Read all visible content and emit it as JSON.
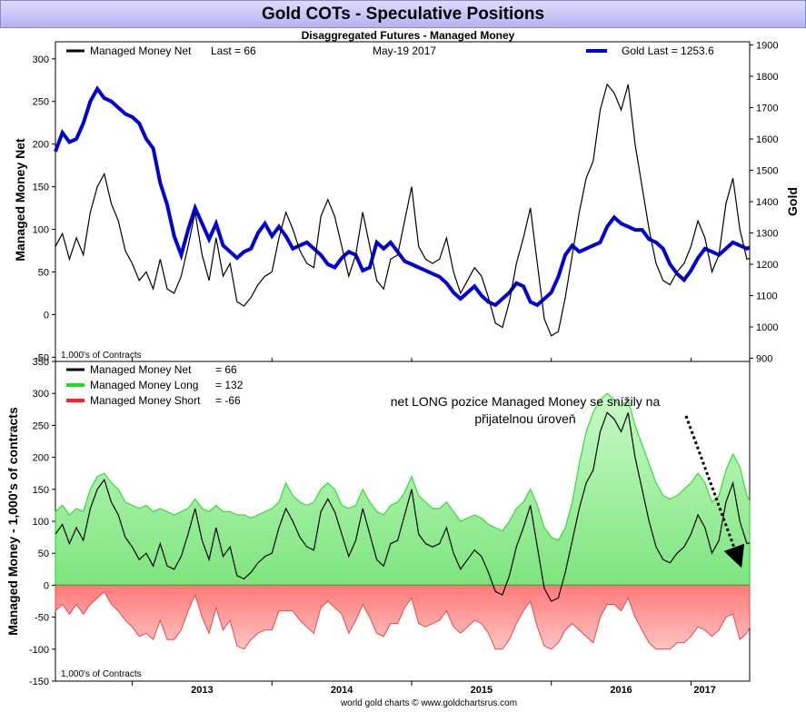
{
  "title": "Gold COTs - Speculative Positions",
  "subtitle": "Disaggregated Futures - Managed Money",
  "footer": "world gold charts © www.goldchartsrus.com",
  "chart_data": [
    {
      "type": "line",
      "legend": {
        "net": "Managed Money Net",
        "net_last": "Last = 66",
        "date": "May-19  2017",
        "gold": "Gold Last = 1253.6"
      },
      "ylabel_left": "Managed Money Net",
      "ylabel_right": "Gold",
      "units": "1,000's of Contracts",
      "ylim_left": [
        -55,
        320
      ],
      "ylim_right": [
        890,
        1910
      ],
      "yticks_left": [
        -50,
        0,
        50,
        100,
        150,
        200,
        250,
        300
      ],
      "yticks_right": [
        900,
        1000,
        1100,
        1200,
        1300,
        1400,
        1500,
        1600,
        1700,
        1800,
        1900
      ],
      "x_domain": [
        2012.45,
        2017.42
      ],
      "series": [
        {
          "name": "Managed Money Net",
          "color": "#000000",
          "x": [
            2012.45,
            2012.5,
            2012.55,
            2012.6,
            2012.65,
            2012.7,
            2012.75,
            2012.8,
            2012.85,
            2012.9,
            2012.95,
            2013.0,
            2013.05,
            2013.1,
            2013.15,
            2013.2,
            2013.25,
            2013.3,
            2013.35,
            2013.4,
            2013.45,
            2013.5,
            2013.55,
            2013.6,
            2013.65,
            2013.7,
            2013.75,
            2013.8,
            2013.85,
            2013.9,
            2013.95,
            2014.0,
            2014.05,
            2014.1,
            2014.15,
            2014.2,
            2014.25,
            2014.3,
            2014.35,
            2014.4,
            2014.45,
            2014.5,
            2014.55,
            2014.6,
            2014.65,
            2014.7,
            2014.75,
            2014.8,
            2014.85,
            2014.9,
            2014.95,
            2015.0,
            2015.05,
            2015.1,
            2015.15,
            2015.2,
            2015.25,
            2015.3,
            2015.35,
            2015.4,
            2015.45,
            2015.5,
            2015.55,
            2015.6,
            2015.65,
            2015.7,
            2015.75,
            2015.8,
            2015.85,
            2015.9,
            2015.95,
            2016.0,
            2016.05,
            2016.1,
            2016.15,
            2016.2,
            2016.25,
            2016.3,
            2016.35,
            2016.4,
            2016.45,
            2016.5,
            2016.55,
            2016.6,
            2016.65,
            2016.7,
            2016.75,
            2016.8,
            2016.85,
            2016.9,
            2016.95,
            2017.0,
            2017.05,
            2017.1,
            2017.15,
            2017.2,
            2017.25,
            2017.3,
            2017.35,
            2017.4,
            2017.42
          ],
          "y": [
            80,
            95,
            65,
            90,
            70,
            120,
            150,
            165,
            130,
            110,
            75,
            60,
            40,
            50,
            30,
            65,
            30,
            25,
            45,
            80,
            120,
            70,
            40,
            90,
            45,
            60,
            15,
            10,
            20,
            35,
            45,
            50,
            90,
            120,
            100,
            75,
            60,
            55,
            115,
            135,
            115,
            80,
            45,
            70,
            120,
            80,
            40,
            30,
            65,
            70,
            110,
            150,
            80,
            65,
            60,
            65,
            90,
            50,
            25,
            40,
            55,
            45,
            20,
            -10,
            -15,
            15,
            60,
            90,
            125,
            60,
            -5,
            -25,
            -20,
            20,
            70,
            120,
            160,
            180,
            240,
            270,
            260,
            240,
            270,
            200,
            150,
            100,
            60,
            40,
            35,
            50,
            60,
            80,
            110,
            90,
            50,
            70,
            130,
            160,
            100,
            65,
            66
          ]
        },
        {
          "name": "Gold",
          "color": "#0000dd",
          "x": [
            2012.45,
            2012.5,
            2012.55,
            2012.6,
            2012.65,
            2012.7,
            2012.75,
            2012.8,
            2012.85,
            2012.9,
            2012.95,
            2013.0,
            2013.05,
            2013.1,
            2013.15,
            2013.2,
            2013.25,
            2013.3,
            2013.35,
            2013.4,
            2013.45,
            2013.5,
            2013.55,
            2013.6,
            2013.65,
            2013.7,
            2013.75,
            2013.8,
            2013.85,
            2013.9,
            2013.95,
            2014.0,
            2014.05,
            2014.1,
            2014.15,
            2014.2,
            2014.25,
            2014.3,
            2014.35,
            2014.4,
            2014.45,
            2014.5,
            2014.55,
            2014.6,
            2014.65,
            2014.7,
            2014.75,
            2014.8,
            2014.85,
            2014.9,
            2014.95,
            2015.0,
            2015.05,
            2015.1,
            2015.15,
            2015.2,
            2015.25,
            2015.3,
            2015.35,
            2015.4,
            2015.45,
            2015.5,
            2015.55,
            2015.6,
            2015.65,
            2015.7,
            2015.75,
            2015.8,
            2015.85,
            2015.9,
            2015.95,
            2016.0,
            2016.05,
            2016.1,
            2016.15,
            2016.2,
            2016.25,
            2016.3,
            2016.35,
            2016.4,
            2016.45,
            2016.5,
            2016.55,
            2016.6,
            2016.65,
            2016.7,
            2016.75,
            2016.8,
            2016.85,
            2016.9,
            2016.95,
            2017.0,
            2017.05,
            2017.1,
            2017.15,
            2017.2,
            2017.25,
            2017.3,
            2017.35,
            2017.4,
            2017.42
          ],
          "y": [
            1560,
            1620,
            1590,
            1600,
            1650,
            1720,
            1760,
            1730,
            1720,
            1700,
            1680,
            1670,
            1650,
            1600,
            1570,
            1460,
            1390,
            1290,
            1230,
            1310,
            1380,
            1330,
            1280,
            1330,
            1260,
            1240,
            1220,
            1240,
            1250,
            1300,
            1330,
            1290,
            1320,
            1290,
            1250,
            1260,
            1270,
            1250,
            1230,
            1200,
            1190,
            1220,
            1240,
            1230,
            1180,
            1190,
            1270,
            1250,
            1270,
            1240,
            1210,
            1200,
            1190,
            1180,
            1170,
            1160,
            1140,
            1110,
            1090,
            1110,
            1130,
            1100,
            1080,
            1070,
            1090,
            1110,
            1140,
            1130,
            1080,
            1070,
            1090,
            1110,
            1160,
            1230,
            1260,
            1240,
            1250,
            1260,
            1270,
            1320,
            1350,
            1330,
            1320,
            1310,
            1310,
            1280,
            1270,
            1250,
            1200,
            1170,
            1150,
            1180,
            1220,
            1250,
            1240,
            1230,
            1250,
            1270,
            1260,
            1250,
            1253.6
          ]
        }
      ]
    },
    {
      "type": "area",
      "legend": {
        "net": "Managed Money Net",
        "net_value": "= 66",
        "long": "Managed Money Long",
        "long_value": "= 132",
        "short": "Managed Money Short",
        "short_value": "= -66"
      },
      "ylabel": "Managed Money - 1,000's of contracts",
      "units": "1,000's of Contracts",
      "annotation": [
        "net LONG pozice Managed Money se snížily na",
        "přijatelnou úroveň"
      ],
      "ylim": [
        -150,
        350
      ],
      "yticks": [
        -150,
        -100,
        -50,
        0,
        50,
        100,
        150,
        200,
        250,
        300,
        350
      ],
      "x_domain": [
        2012.45,
        2017.42
      ],
      "xticks": [
        {
          "x": 2013.0,
          "label": "2013"
        },
        {
          "x": 2014.0,
          "label": "2014"
        },
        {
          "x": 2015.0,
          "label": "2015"
        },
        {
          "x": 2016.0,
          "label": "2016"
        },
        {
          "x": 2017.0,
          "label": "2017"
        }
      ],
      "series": [
        {
          "name": "Managed Money Long",
          "color": "#22cc22",
          "x": [
            2012.45,
            2012.5,
            2012.55,
            2012.6,
            2012.65,
            2012.7,
            2012.75,
            2012.8,
            2012.85,
            2012.9,
            2012.95,
            2013.0,
            2013.05,
            2013.1,
            2013.15,
            2013.2,
            2013.25,
            2013.3,
            2013.35,
            2013.4,
            2013.45,
            2013.5,
            2013.55,
            2013.6,
            2013.65,
            2013.7,
            2013.75,
            2013.8,
            2013.85,
            2013.9,
            2013.95,
            2014.0,
            2014.05,
            2014.1,
            2014.15,
            2014.2,
            2014.25,
            2014.3,
            2014.35,
            2014.4,
            2014.45,
            2014.5,
            2014.55,
            2014.6,
            2014.65,
            2014.7,
            2014.75,
            2014.8,
            2014.85,
            2014.9,
            2014.95,
            2015.0,
            2015.05,
            2015.1,
            2015.15,
            2015.2,
            2015.25,
            2015.3,
            2015.35,
            2015.4,
            2015.45,
            2015.5,
            2015.55,
            2015.6,
            2015.65,
            2015.7,
            2015.75,
            2015.8,
            2015.85,
            2015.9,
            2015.95,
            2016.0,
            2016.05,
            2016.1,
            2016.15,
            2016.2,
            2016.25,
            2016.3,
            2016.35,
            2016.4,
            2016.45,
            2016.5,
            2016.55,
            2016.6,
            2016.65,
            2016.7,
            2016.75,
            2016.8,
            2016.85,
            2016.9,
            2016.95,
            2017.0,
            2017.05,
            2017.1,
            2017.15,
            2017.2,
            2017.25,
            2017.3,
            2017.35,
            2017.4,
            2017.42
          ],
          "y": [
            115,
            125,
            110,
            120,
            115,
            150,
            170,
            175,
            160,
            150,
            130,
            125,
            120,
            125,
            115,
            120,
            115,
            110,
            115,
            120,
            135,
            120,
            115,
            125,
            115,
            115,
            110,
            110,
            105,
            110,
            115,
            120,
            130,
            160,
            140,
            130,
            125,
            130,
            150,
            160,
            150,
            125,
            120,
            125,
            150,
            130,
            115,
            110,
            125,
            130,
            145,
            170,
            140,
            130,
            120,
            120,
            130,
            115,
            100,
            105,
            110,
            105,
            95,
            90,
            85,
            100,
            120,
            130,
            150,
            125,
            90,
            75,
            70,
            90,
            130,
            190,
            240,
            270,
            290,
            300,
            290,
            280,
            290,
            250,
            220,
            190,
            160,
            140,
            135,
            140,
            150,
            160,
            175,
            160,
            130,
            140,
            180,
            205,
            185,
            140,
            132
          ]
        },
        {
          "name": "Managed Money Short",
          "color": "#ff3333",
          "x": [
            2012.45,
            2012.5,
            2012.55,
            2012.6,
            2012.65,
            2012.7,
            2012.75,
            2012.8,
            2012.85,
            2012.9,
            2012.95,
            2013.0,
            2013.05,
            2013.1,
            2013.15,
            2013.2,
            2013.25,
            2013.3,
            2013.35,
            2013.4,
            2013.45,
            2013.5,
            2013.55,
            2013.6,
            2013.65,
            2013.7,
            2013.75,
            2013.8,
            2013.85,
            2013.9,
            2013.95,
            2014.0,
            2014.05,
            2014.1,
            2014.15,
            2014.2,
            2014.25,
            2014.3,
            2014.35,
            2014.4,
            2014.45,
            2014.5,
            2014.55,
            2014.6,
            2014.65,
            2014.7,
            2014.75,
            2014.8,
            2014.85,
            2014.9,
            2014.95,
            2015.0,
            2015.05,
            2015.1,
            2015.15,
            2015.2,
            2015.25,
            2015.3,
            2015.35,
            2015.4,
            2015.45,
            2015.5,
            2015.55,
            2015.6,
            2015.65,
            2015.7,
            2015.75,
            2015.8,
            2015.85,
            2015.9,
            2015.95,
            2016.0,
            2016.05,
            2016.1,
            2016.15,
            2016.2,
            2016.25,
            2016.3,
            2016.35,
            2016.4,
            2016.45,
            2016.5,
            2016.55,
            2016.6,
            2016.65,
            2016.7,
            2016.75,
            2016.8,
            2016.85,
            2016.9,
            2016.95,
            2017.0,
            2017.05,
            2017.1,
            2017.15,
            2017.2,
            2017.25,
            2017.3,
            2017.35,
            2017.4,
            2017.42
          ],
          "y": [
            -40,
            -30,
            -45,
            -30,
            -45,
            -30,
            -20,
            -10,
            -30,
            -40,
            -55,
            -65,
            -80,
            -75,
            -85,
            -55,
            -85,
            -85,
            -70,
            -40,
            -15,
            -50,
            -75,
            -35,
            -70,
            -55,
            -95,
            -100,
            -85,
            -75,
            -70,
            -70,
            -40,
            -40,
            -40,
            -55,
            -65,
            -75,
            -35,
            -25,
            -35,
            -45,
            -75,
            -55,
            -30,
            -50,
            -75,
            -80,
            -60,
            -60,
            -35,
            -20,
            -60,
            -65,
            -60,
            -55,
            -40,
            -65,
            -75,
            -65,
            -55,
            -60,
            -75,
            -100,
            -100,
            -85,
            -60,
            -40,
            -25,
            -65,
            -95,
            -100,
            -90,
            -70,
            -60,
            -70,
            -80,
            -90,
            -50,
            -30,
            -30,
            -40,
            -20,
            -50,
            -70,
            -90,
            -100,
            -100,
            -100,
            -90,
            -90,
            -80,
            -65,
            -70,
            -80,
            -70,
            -50,
            -45,
            -85,
            -75,
            -66
          ]
        }
      ]
    }
  ]
}
